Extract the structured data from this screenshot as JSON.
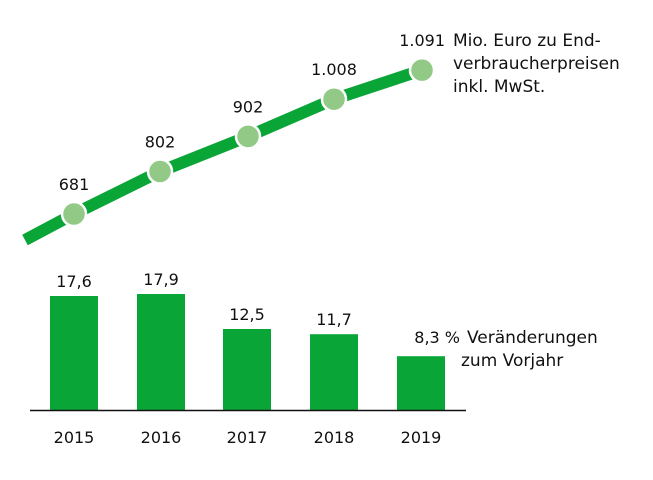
{
  "colors": {
    "bar": "#0aa537",
    "line": "#0aa537",
    "marker": "#93c987",
    "text": "#111111",
    "axis": "#111111"
  },
  "chart_data": [
    {
      "type": "line",
      "x": [
        "2015",
        "2016",
        "2017",
        "2018",
        "2019"
      ],
      "values": [
        681,
        802,
        902,
        1008,
        1091
      ],
      "data_labels": [
        "681",
        "802",
        "902",
        "1.008",
        "1.091"
      ],
      "annotation": [
        "Mio. Euro zu End-",
        "verbraucherpreisen",
        "inkl. MwSt."
      ]
    },
    {
      "type": "bar",
      "categories": [
        "2015",
        "2016",
        "2017",
        "2018",
        "2019"
      ],
      "values": [
        17.6,
        17.9,
        12.5,
        11.7,
        8.3
      ],
      "data_labels": [
        "17,6",
        "17,9",
        "12,5",
        "11,7",
        "8,3 %"
      ],
      "annotation": [
        "Veränderungen",
        "zum Vorjahr"
      ],
      "ylim": [
        0,
        17.9
      ]
    }
  ]
}
